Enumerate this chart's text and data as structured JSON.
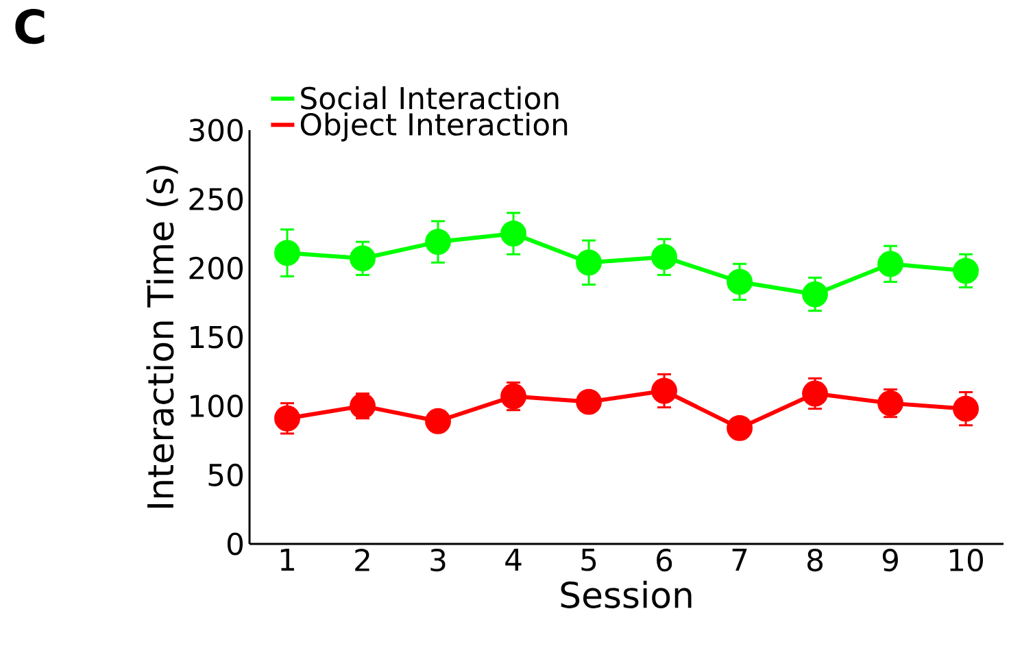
{
  "chart_data": {
    "type": "line",
    "xlabel": "Session",
    "ylabel": "Interaction Time (s)",
    "annotations": [
      "C"
    ],
    "categories": [
      "1",
      "2",
      "3",
      "4",
      "5",
      "6",
      "7",
      "8",
      "9",
      "10"
    ],
    "series": [
      {
        "name": "Social Interaction",
        "color": "#00ff00",
        "values": [
          211,
          207,
          219,
          225,
          204,
          208,
          190,
          181,
          203,
          198
        ],
        "errors": [
          17,
          12,
          15,
          15,
          16,
          13,
          13,
          12,
          13,
          12
        ]
      },
      {
        "name": "Object Interaction",
        "color": "#ff0000",
        "values": [
          91,
          100,
          89,
          107,
          103,
          111,
          84,
          109,
          102,
          98
        ],
        "errors": [
          11,
          9,
          4,
          10,
          5,
          12,
          3,
          11,
          10,
          12
        ]
      }
    ],
    "ylim": [
      0,
      300
    ],
    "yticks": [
      0,
      50,
      100,
      150,
      200,
      250,
      300
    ],
    "marker": "circle",
    "legend": "top left",
    "grid": false
  }
}
